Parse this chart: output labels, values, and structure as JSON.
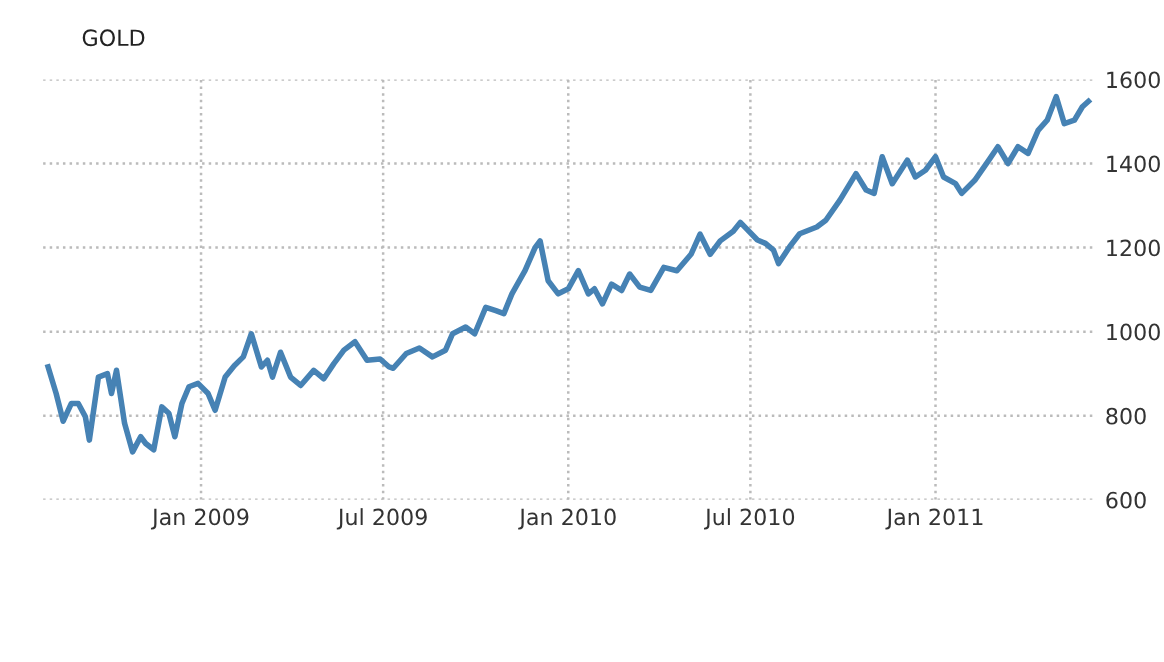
{
  "chart_data": {
    "type": "line",
    "title": "GOLD",
    "x": [
      "2008-08-02",
      "2008-08-10",
      "2008-08-17",
      "2008-08-25",
      "2008-09-01",
      "2008-09-08",
      "2008-09-12",
      "2008-09-21",
      "2008-09-30",
      "2008-10-04",
      "2008-10-09",
      "2008-10-17",
      "2008-10-25",
      "2008-11-02",
      "2008-11-07",
      "2008-11-15",
      "2008-11-23",
      "2008-11-30",
      "2008-12-06",
      "2008-12-13",
      "2008-12-20",
      "2008-12-29",
      "2009-01-08",
      "2009-01-15",
      "2009-01-25",
      "2009-02-03",
      "2009-02-12",
      "2009-02-20",
      "2009-03-02",
      "2009-03-08",
      "2009-03-13",
      "2009-03-21",
      "2009-03-31",
      "2009-04-10",
      "2009-04-23",
      "2009-05-03",
      "2009-05-13",
      "2009-05-23",
      "2009-06-03",
      "2009-06-15",
      "2009-06-28",
      "2009-07-07",
      "2009-07-11",
      "2009-07-24",
      "2009-08-06",
      "2009-08-19",
      "2009-09-01",
      "2009-09-08",
      "2009-09-21",
      "2009-09-30",
      "2009-10-11",
      "2009-10-21",
      "2009-10-29",
      "2009-11-06",
      "2009-11-19",
      "2009-11-29",
      "2009-12-04",
      "2009-12-12",
      "2009-12-22",
      "2010-01-01",
      "2010-01-11",
      "2010-01-21",
      "2010-01-27",
      "2010-02-04",
      "2010-02-13",
      "2010-02-23",
      "2010-03-03",
      "2010-03-13",
      "2010-03-24",
      "2010-04-06",
      "2010-04-19",
      "2010-05-03",
      "2010-05-12",
      "2010-05-22",
      "2010-06-01",
      "2010-06-14",
      "2010-06-21",
      "2010-07-08",
      "2010-07-16",
      "2010-07-24",
      "2010-07-29",
      "2010-08-09",
      "2010-08-19",
      "2010-09-05",
      "2010-09-14",
      "2010-09-28",
      "2010-10-14",
      "2010-10-24",
      "2010-11-01",
      "2010-11-09",
      "2010-11-19",
      "2010-12-04",
      "2010-12-12",
      "2010-12-22",
      "2011-01-01",
      "2011-01-09",
      "2011-01-21",
      "2011-01-27",
      "2011-02-09",
      "2011-02-23",
      "2011-03-04",
      "2011-03-14",
      "2011-03-24",
      "2011-04-03",
      "2011-04-13",
      "2011-04-22",
      "2011-05-01",
      "2011-05-09",
      "2011-05-19",
      "2011-05-27",
      "2011-06-02"
    ],
    "series": [
      {
        "color": "#4682b4",
        "values": [
          916,
          853,
          787,
          829,
          829,
          798,
          742,
          892,
          900,
          853,
          908,
          782,
          714,
          750,
          734,
          719,
          821,
          806,
          750,
          829,
          869,
          877,
          853,
          813,
          892,
          919,
          940,
          995,
          916,
          932,
          892,
          951,
          892,
          872,
          908,
          888,
          924,
          956,
          976,
          932,
          935,
          916,
          913,
          948,
          961,
          940,
          956,
          995,
          1011,
          995,
          1058,
          1050,
          1043,
          1090,
          1145,
          1200,
          1216,
          1121,
          1090,
          1102,
          1145,
          1090,
          1102,
          1066,
          1113,
          1098,
          1137,
          1106,
          1098,
          1153,
          1145,
          1184,
          1232,
          1184,
          1216,
          1239,
          1260,
          1218,
          1210,
          1194,
          1162,
          1202,
          1233,
          1249,
          1265,
          1313,
          1376,
          1337,
          1329,
          1416,
          1352,
          1408,
          1368,
          1384,
          1416,
          1368,
          1352,
          1329,
          1360,
          1408,
          1440,
          1400,
          1440,
          1424,
          1479,
          1503,
          1559,
          1495,
          1503,
          1535,
          1548
        ]
      }
    ],
    "xlim": [
      "2008-07-28",
      "2011-06-10"
    ],
    "xticks": [
      {
        "value": "2009-01-01",
        "label": "Jan 2009"
      },
      {
        "value": "2009-07-01",
        "label": "Jul 2009"
      },
      {
        "value": "2010-01-01",
        "label": "Jan 2010"
      },
      {
        "value": "2010-07-01",
        "label": "Jul 2010"
      },
      {
        "value": "2011-01-01",
        "label": "Jan 2011"
      }
    ],
    "ylim": [
      600,
      1600
    ],
    "yticks": [
      600,
      800,
      1000,
      1200,
      1400,
      1600
    ],
    "grid": true,
    "line_style": "solid",
    "marker": "none",
    "legend": false
  }
}
